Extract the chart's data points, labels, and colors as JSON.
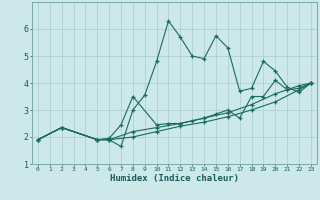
{
  "xlabel": "Humidex (Indice chaleur)",
  "bg_color": "#cce8e8",
  "line_color": "#1a6b5a",
  "grid_color": "#aacccc",
  "xlim": [
    -0.5,
    23.5
  ],
  "ylim": [
    1,
    7
  ],
  "xticks": [
    0,
    1,
    2,
    3,
    4,
    5,
    6,
    7,
    8,
    9,
    10,
    11,
    12,
    13,
    14,
    15,
    16,
    17,
    18,
    19,
    20,
    21,
    22,
    23
  ],
  "yticks": [
    1,
    2,
    3,
    4,
    5,
    6
  ],
  "series": [
    {
      "x": [
        0,
        2,
        5,
        6,
        7,
        8,
        9,
        10,
        11,
        12,
        13,
        14,
        15,
        16,
        17,
        18,
        19,
        20,
        21,
        22,
        23
      ],
      "y": [
        1.9,
        2.35,
        1.9,
        1.9,
        1.65,
        3.0,
        3.55,
        4.8,
        6.3,
        5.7,
        5.0,
        4.9,
        5.75,
        5.3,
        3.7,
        3.8,
        4.8,
        4.45,
        3.85,
        3.65,
        4.0
      ]
    },
    {
      "x": [
        0,
        2,
        5,
        6,
        7,
        8,
        10,
        11,
        12,
        13,
        14,
        15,
        16,
        17,
        18,
        19,
        20,
        21,
        22,
        23
      ],
      "y": [
        1.9,
        2.35,
        1.9,
        1.95,
        2.45,
        3.5,
        2.45,
        2.5,
        2.5,
        2.6,
        2.7,
        2.85,
        3.0,
        2.7,
        3.5,
        3.5,
        4.1,
        3.75,
        3.8,
        4.0
      ]
    },
    {
      "x": [
        0,
        2,
        5,
        6,
        8,
        10,
        12,
        14,
        16,
        18,
        20,
        22,
        23
      ],
      "y": [
        1.9,
        2.35,
        1.9,
        1.9,
        2.2,
        2.35,
        2.5,
        2.7,
        2.9,
        3.2,
        3.6,
        3.9,
        4.0
      ]
    },
    {
      "x": [
        0,
        2,
        5,
        6,
        8,
        10,
        12,
        14,
        16,
        18,
        20,
        22,
        23
      ],
      "y": [
        1.9,
        2.35,
        1.9,
        1.9,
        2.0,
        2.2,
        2.4,
        2.55,
        2.75,
        3.0,
        3.3,
        3.75,
        4.0
      ]
    }
  ]
}
